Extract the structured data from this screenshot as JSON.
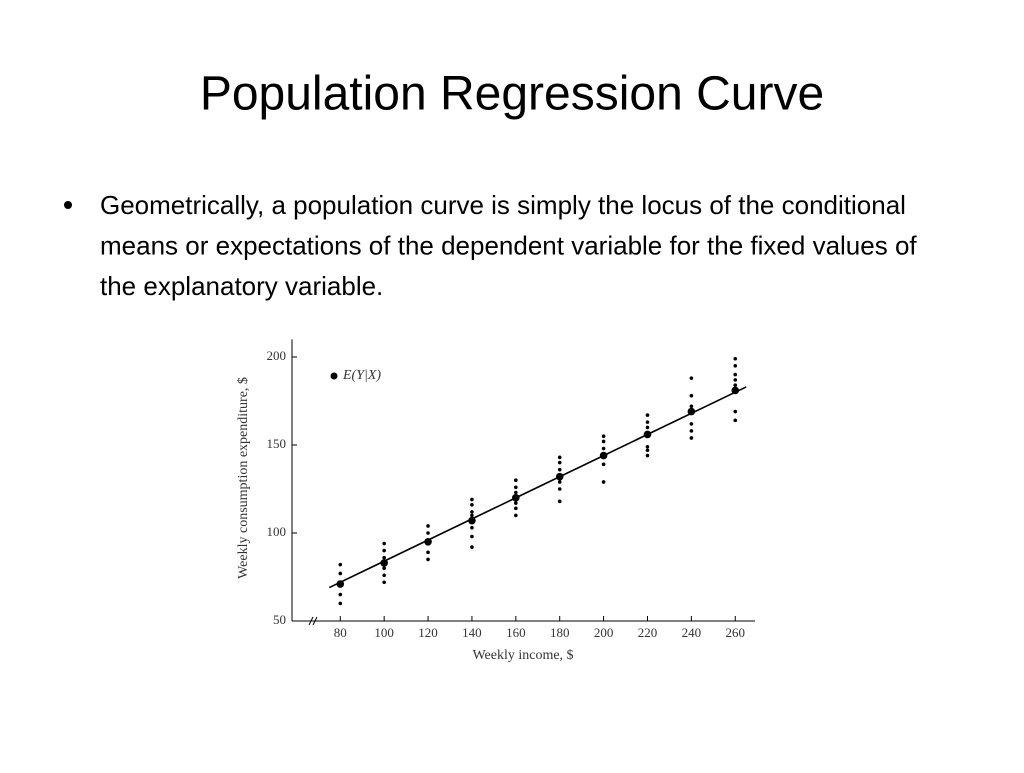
{
  "title": "Population Regression Curve",
  "bullets": [
    "Geometrically, a population curve is simply the locus of the conditional means or expectations of the dependent variable for the fixed values of the explanatory variable."
  ],
  "chart_data": {
    "type": "scatter",
    "xlabel": "Weekly income, $",
    "ylabel": "Weekly consumption expenditure, $",
    "xlim": [
      58,
      269
    ],
    "ylim": [
      50,
      210
    ],
    "xticks": [
      80,
      100,
      120,
      140,
      160,
      180,
      200,
      220,
      240,
      260
    ],
    "yticks": [
      50,
      100,
      150,
      200
    ],
    "color": "#000000",
    "observations": {
      "x": [
        80,
        80,
        80,
        80,
        100,
        100,
        100,
        100,
        100,
        100,
        120,
        120,
        120,
        120,
        140,
        140,
        140,
        140,
        140,
        140,
        140,
        160,
        160,
        160,
        160,
        160,
        160,
        180,
        180,
        180,
        180,
        180,
        180,
        200,
        200,
        200,
        200,
        200,
        220,
        220,
        220,
        220,
        220,
        220,
        240,
        240,
        240,
        240,
        240,
        240,
        260,
        260,
        260,
        260,
        260,
        260,
        260
      ],
      "values": [
        82,
        77,
        65,
        60,
        94,
        90,
        86,
        80,
        76,
        72,
        104,
        100,
        89,
        85,
        119,
        116,
        112,
        110,
        103,
        98,
        92,
        130,
        126,
        123,
        117,
        114,
        110,
        143,
        140,
        136,
        129,
        125,
        118,
        155,
        152,
        148,
        139,
        129,
        167,
        163,
        160,
        149,
        147,
        144,
        188,
        178,
        172,
        162,
        158,
        154,
        199,
        195,
        190,
        187,
        184,
        169,
        164
      ]
    },
    "series": [
      {
        "name": "E(Y|X)",
        "x": [
          80,
          100,
          120,
          140,
          160,
          180,
          200,
          220,
          240,
          260
        ],
        "values": [
          71,
          83,
          95,
          107,
          120,
          132,
          144,
          156,
          169,
          181
        ]
      }
    ],
    "line": {
      "x": [
        75,
        265
      ],
      "values": [
        69,
        183
      ]
    }
  }
}
